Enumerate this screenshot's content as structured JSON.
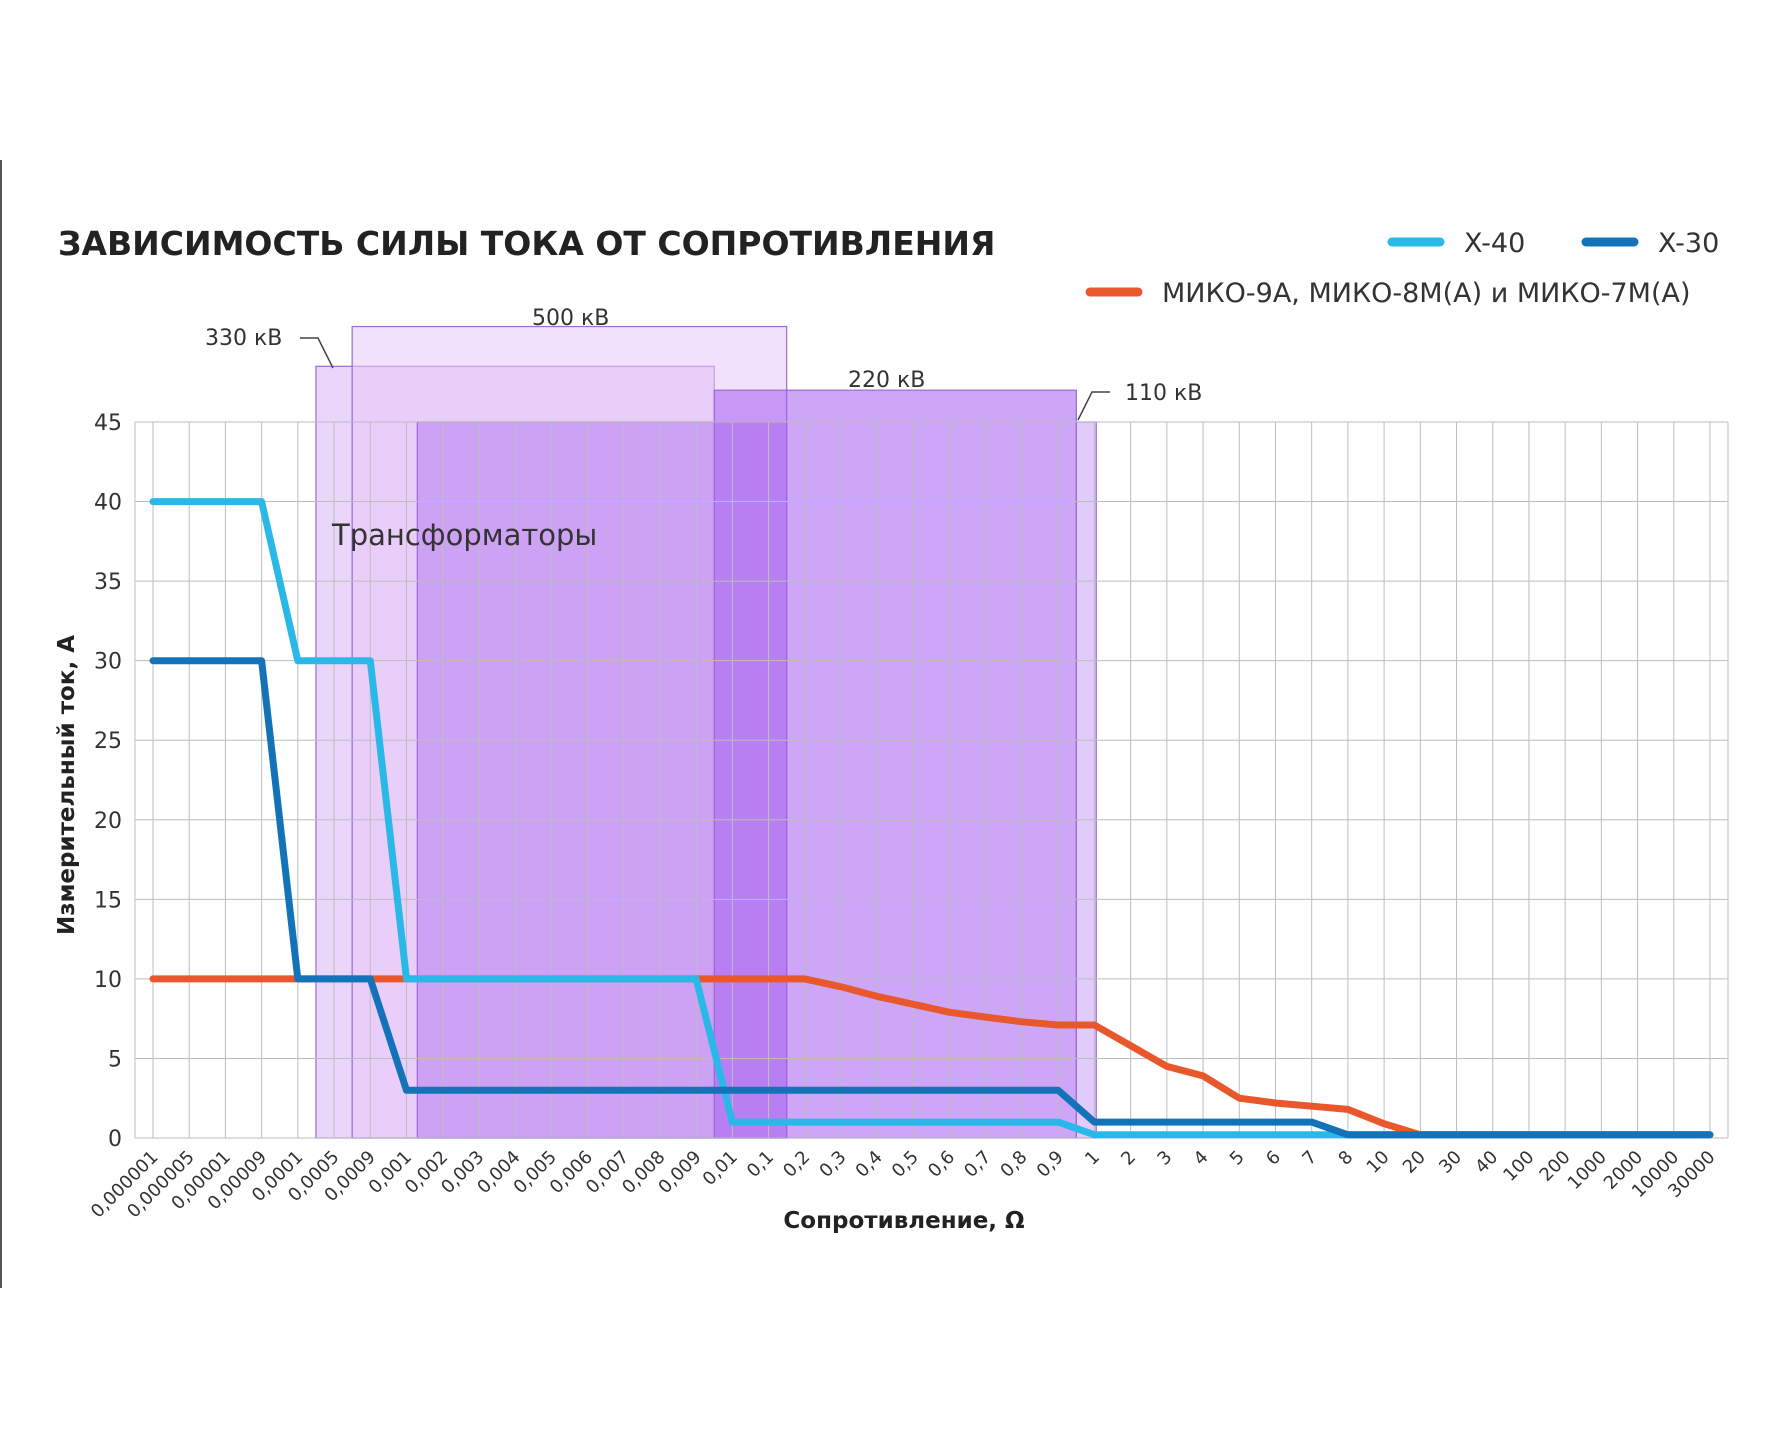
{
  "chart_data": {
    "type": "line",
    "title": "ЗАВИСИМОСТЬ СИЛЫ ТОКА ОТ СОПРОТИВЛЕНИЯ",
    "xlabel": "Сопротивление, Ω",
    "ylabel": "Измерительный ток, А",
    "ylim": [
      0,
      45
    ],
    "yticks": [
      0,
      5,
      10,
      15,
      20,
      25,
      30,
      35,
      40,
      45
    ],
    "categories": [
      "0,000001",
      "0,000005",
      "0,00001",
      "0,00009",
      "0,0001",
      "0,0005",
      "0,0009",
      "0,001",
      "0,002",
      "0,003",
      "0,004",
      "0,005",
      "0,006",
      "0,007",
      "0,008",
      "0,009",
      "0,01",
      "0,1",
      "0,2",
      "0,3",
      "0,4",
      "0,5",
      "0,6",
      "0,7",
      "0,8",
      "0,9",
      "1",
      "2",
      "3",
      "4",
      "5",
      "6",
      "7",
      "8",
      "10",
      "20",
      "30",
      "40",
      "100",
      "200",
      "1000",
      "2000",
      "10000",
      "30000"
    ],
    "grid": true,
    "legend_position": "top-right",
    "series": [
      {
        "name": "X-40",
        "color": "#29b8e8",
        "points": [
          [
            0,
            40
          ],
          [
            3,
            40
          ],
          [
            4,
            30
          ],
          [
            6,
            30
          ],
          [
            7,
            10
          ],
          [
            15,
            10
          ],
          [
            16,
            1
          ],
          [
            25,
            1
          ],
          [
            26,
            0.2
          ],
          [
            33,
            0.2
          ],
          [
            34,
            0.2
          ],
          [
            43,
            0.2
          ]
        ]
      },
      {
        "name": "X-30",
        "color": "#1473b8",
        "points": [
          [
            0,
            30
          ],
          [
            3,
            30
          ],
          [
            4,
            10
          ],
          [
            6,
            10
          ],
          [
            7,
            3
          ],
          [
            25,
            3
          ],
          [
            26,
            1
          ],
          [
            32,
            1
          ],
          [
            33,
            0.2
          ],
          [
            43,
            0.2
          ]
        ]
      },
      {
        "name": "МИКО-9А, МИКО-8М(А) и МИКО-7М(А)",
        "color": "#e8582c",
        "points": [
          [
            0,
            10
          ],
          [
            18,
            10
          ],
          [
            19,
            9.5
          ],
          [
            20,
            8.9
          ],
          [
            21,
            8.4
          ],
          [
            22,
            7.9
          ],
          [
            23,
            7.6
          ],
          [
            24,
            7.3
          ],
          [
            25,
            7.1
          ],
          [
            26,
            7.1
          ],
          [
            27,
            5.8
          ],
          [
            28,
            4.5
          ],
          [
            29,
            3.9
          ],
          [
            30,
            2.5
          ],
          [
            31,
            2.2
          ],
          [
            32,
            2.0
          ],
          [
            33,
            1.8
          ],
          [
            34,
            0.9
          ],
          [
            35,
            0.2
          ],
          [
            43,
            0.2
          ]
        ]
      }
    ],
    "zones": [
      {
        "label": "330 кВ",
        "color": "#d9b3f7",
        "x_start": 4.5,
        "x_end": 15.5,
        "top": 48.5
      },
      {
        "label": "500 кВ",
        "color": "#e6c9f7",
        "x_start": 5.5,
        "x_end": 17.5,
        "top": 51
      },
      {
        "label": "",
        "color": "#b77cf0",
        "x_start": 7.3,
        "x_end": 17.5,
        "top": 45
      },
      {
        "label": "220 кВ",
        "color": "#a45cf0",
        "x_start": 15.5,
        "x_end": 25.5,
        "top": 47
      },
      {
        "label": "110 кВ",
        "color": "#c9a0f5",
        "x_start": 25.5,
        "x_end": 26.05,
        "top": 45
      }
    ],
    "annotations": [
      {
        "text": "Трансформаторы"
      }
    ]
  }
}
